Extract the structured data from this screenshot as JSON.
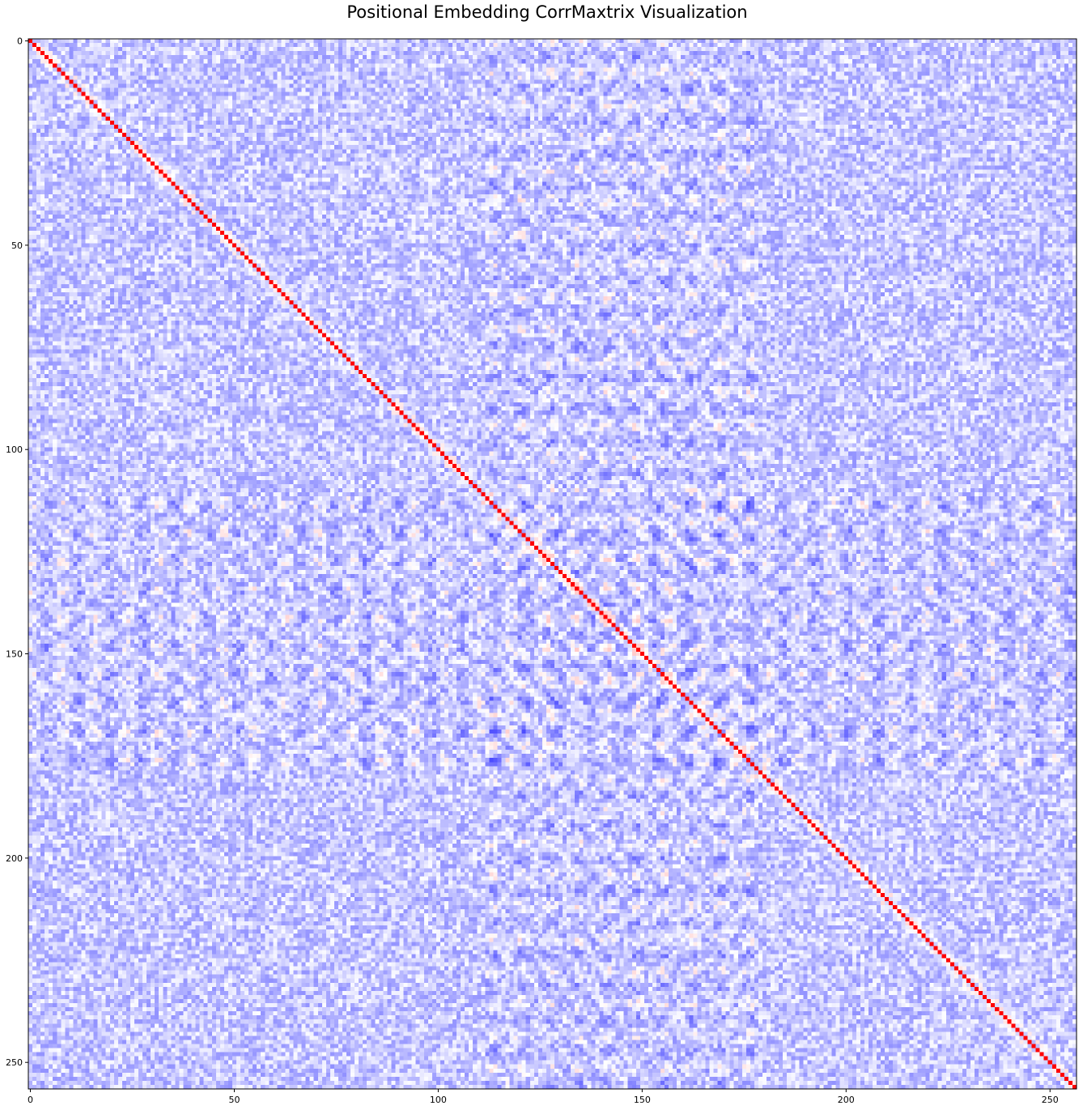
{
  "chart_data": {
    "type": "heatmap",
    "title": "Positional Embedding CorrMaxtrix Visualization",
    "xlabel": "",
    "ylabel": "",
    "size": 257,
    "xlim": [
      0,
      256
    ],
    "ylim": [
      256,
      0
    ],
    "x_ticks": [
      0,
      50,
      100,
      150,
      200,
      250
    ],
    "y_ticks": [
      0,
      50,
      100,
      150,
      200,
      250
    ],
    "x_tick_labels": [
      "0",
      "50",
      "100",
      "150",
      "200",
      "250"
    ],
    "y_tick_labels": [
      "0",
      "50",
      "100",
      "150",
      "200",
      "250"
    ],
    "colormap": "bwr",
    "value_range": [
      -1,
      1
    ],
    "diagonal_value": 1.0,
    "off_diagonal_typical_range": [
      -0.5,
      0.1
    ],
    "colors": {
      "low": "#0000ff",
      "mid": "#ffffff",
      "high": "#ff0000"
    },
    "grid": false,
    "legend": "none"
  }
}
